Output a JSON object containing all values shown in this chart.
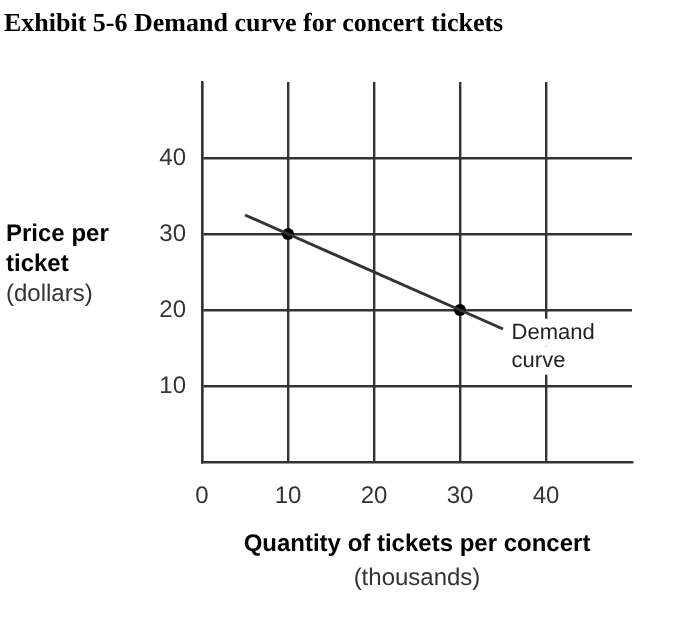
{
  "chart_data": {
    "type": "line",
    "title": "Exhibit 5-6 Demand curve for concert tickets",
    "xlabel": "Quantity of tickets per concert (thousands)",
    "ylabel": "Price per ticket (dollars)",
    "xlim": [
      0,
      50
    ],
    "ylim": [
      0,
      50
    ],
    "xticks": [
      0,
      10,
      20,
      30,
      40
    ],
    "yticks": [
      10,
      20,
      30,
      40
    ],
    "grid": true,
    "series": [
      {
        "color": "#333333",
        "x": [
          5,
          10,
          30,
          35
        ],
        "values": [
          32.5,
          30,
          20,
          17.5
        ],
        "marker": "none"
      },
      {
        "type": "scatter",
        "color": "#000000",
        "x": [
          10,
          30
        ],
        "values": [
          30,
          20
        ],
        "marker": "circle"
      }
    ],
    "annotations": [
      {
        "text": "Demand curve",
        "x": 36,
        "y": 17
      }
    ]
  }
}
